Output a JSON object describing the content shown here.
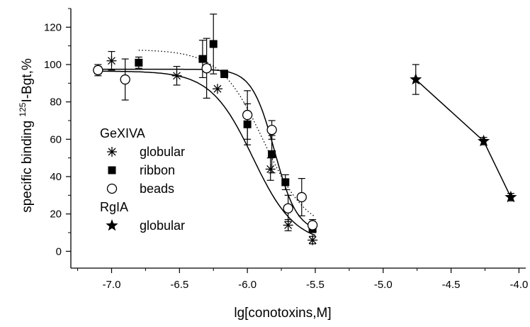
{
  "chart_data": {
    "type": "scatter",
    "xlabel": "lg[conotoxins,M]",
    "ylabel": {
      "prefix": "specific binding ",
      "sup": "125",
      "suffix": "I-Bgt,%"
    },
    "xlim": [
      -7.3,
      -3.95
    ],
    "ylim": [
      -9,
      130
    ],
    "xticks": [
      {
        "value": -7.0,
        "label": "-7.0"
      },
      {
        "value": -6.5,
        "label": "-6.5"
      },
      {
        "value": -6.0,
        "label": "-6.0"
      },
      {
        "value": -5.5,
        "label": "-5.5"
      },
      {
        "value": -5.0,
        "label": "-5.0"
      },
      {
        "value": -4.5,
        "label": "-4.5"
      },
      {
        "value": -4.0,
        "label": "-4.0"
      }
    ],
    "yticks": [
      {
        "value": 0,
        "label": "0"
      },
      {
        "value": 20,
        "label": "20"
      },
      {
        "value": 40,
        "label": "40"
      },
      {
        "value": 60,
        "label": "60"
      },
      {
        "value": 80,
        "label": "80"
      },
      {
        "value": 100,
        "label": "100"
      },
      {
        "value": 120,
        "label": "120"
      }
    ],
    "legend": {
      "placement": "left-bottom",
      "groups": [
        {
          "title": "GeXIVA",
          "items": [
            {
              "series": "globular",
              "label": "globular",
              "marker": "asterisk"
            },
            {
              "series": "ribbon",
              "label": "ribbon",
              "marker": "filled-square"
            },
            {
              "series": "beads",
              "label": "beads",
              "marker": "open-circle"
            }
          ]
        },
        {
          "title": "RgIA",
          "items": [
            {
              "series": "rgia-globular",
              "label": "globular",
              "marker": "filled-star"
            }
          ]
        }
      ]
    },
    "series": [
      {
        "id": "globular",
        "marker": "asterisk",
        "points": [
          {
            "x": -7.1,
            "y": 97,
            "err": 3
          },
          {
            "x": -7.0,
            "y": 102,
            "err": 5
          },
          {
            "x": -6.52,
            "y": 94,
            "err": 5
          },
          {
            "x": -6.22,
            "y": 87,
            "err": 0
          },
          {
            "x": -5.83,
            "y": 44,
            "err": 6
          },
          {
            "x": -5.7,
            "y": 14,
            "err": 3
          },
          {
            "x": -5.52,
            "y": 6,
            "err": 2
          }
        ],
        "fit": {
          "style": "solid",
          "top": 96.5,
          "bottom": 4,
          "logIC50": -5.96,
          "hill": 2.8,
          "x_range": [
            -7.1,
            -5.5
          ]
        }
      },
      {
        "id": "ribbon",
        "marker": "filled-square",
        "points": [
          {
            "x": -6.8,
            "y": 101,
            "err": 3
          },
          {
            "x": -6.33,
            "y": 103,
            "err": 10
          },
          {
            "x": -6.25,
            "y": 111,
            "err": 16
          },
          {
            "x": -6.17,
            "y": 95,
            "err": 2
          },
          {
            "x": -6.0,
            "y": 68,
            "err": 11
          },
          {
            "x": -5.82,
            "y": 52,
            "err": 10
          },
          {
            "x": -5.72,
            "y": 37,
            "err": 4
          },
          {
            "x": -5.52,
            "y": 12,
            "err": 2
          }
        ],
        "fit": {
          "style": "solid",
          "top": 97.5,
          "bottom": 10,
          "logIC50": -5.8,
          "hill": 5.2,
          "x_range": [
            -7.1,
            -5.5
          ]
        }
      },
      {
        "id": "beads",
        "marker": "open-circle",
        "points": [
          {
            "x": -7.1,
            "y": 97,
            "err": 2
          },
          {
            "x": -6.9,
            "y": 92,
            "err": 11
          },
          {
            "x": -6.3,
            "y": 98,
            "err": 16
          },
          {
            "x": -6.0,
            "y": 73,
            "err": 13
          },
          {
            "x": -5.82,
            "y": 65,
            "err": 5
          },
          {
            "x": -5.7,
            "y": 23,
            "err": 7
          },
          {
            "x": -5.6,
            "y": 29,
            "err": 10
          },
          {
            "x": -5.52,
            "y": 14,
            "err": 3
          }
        ],
        "fit": {
          "style": "dotted",
          "top": 108,
          "bottom": 10,
          "logIC50": -5.88,
          "hill": 2.7,
          "x_range": [
            -6.8,
            -5.5
          ]
        }
      },
      {
        "id": "rgia-globular",
        "marker": "filled-star",
        "connect": "line",
        "points": [
          {
            "x": -4.76,
            "y": 92,
            "err": 8
          },
          {
            "x": -4.26,
            "y": 59,
            "err": 2
          },
          {
            "x": -4.06,
            "y": 29,
            "err": 2
          }
        ]
      }
    ]
  }
}
